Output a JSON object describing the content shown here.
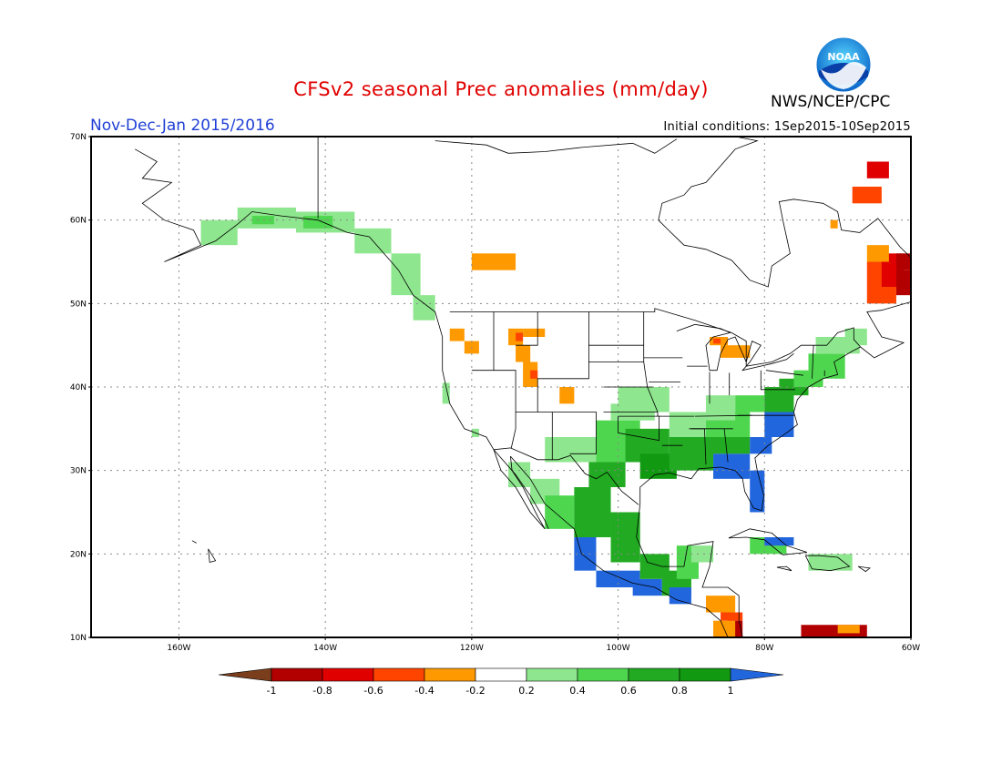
{
  "title": "CFSv2 seasonal Prec anomalies (mm/day)",
  "period": "Nov-Dec-Jan 2015/2016",
  "initial_conditions": "Initial conditions: 1Sep2015-10Sep2015",
  "agency": "NWS/NCEP/CPC",
  "logo_text": "NOAA",
  "map": {
    "lon_range": [
      -172,
      -60
    ],
    "lat_range": [
      10,
      70
    ],
    "lat_ticks": [
      {
        "value": 70,
        "label": "70N"
      },
      {
        "value": 60,
        "label": "60N"
      },
      {
        "value": 50,
        "label": "50N"
      },
      {
        "value": 40,
        "label": "40N"
      },
      {
        "value": 30,
        "label": "30N"
      },
      {
        "value": 20,
        "label": "20N"
      },
      {
        "value": 10,
        "label": "10N"
      }
    ],
    "lon_ticks": [
      {
        "value": -160,
        "label": "160W"
      },
      {
        "value": -140,
        "label": "140W"
      },
      {
        "value": -120,
        "label": "120W"
      },
      {
        "value": -100,
        "label": "100W"
      },
      {
        "value": -80,
        "label": "80W"
      },
      {
        "value": -60,
        "label": "60W"
      }
    ],
    "grid": true
  },
  "colorbar": {
    "labels": [
      "-1",
      "-0.8",
      "-0.6",
      "-0.4",
      "-0.2",
      "0.2",
      "0.4",
      "0.6",
      "0.8",
      "1"
    ],
    "colors": [
      "#7a3e1c",
      "#b20000",
      "#e00000",
      "#ff4400",
      "#ff9900",
      "#ffffff",
      "#8ee68e",
      "#4fd64f",
      "#22aa22",
      "#119911",
      "#2266dd"
    ]
  },
  "anomaly_colors": {
    "lt_-0.8": "#b20000",
    "-0.8_-0.6": "#e00000",
    "-0.6_-0.4": "#ff4400",
    "-0.4_-0.2": "#ff9900",
    "0.2_0.4": "#8ee68e",
    "0.4_0.6": "#4fd64f",
    "0.6_0.8": "#22aa22",
    "0.8_1": "#119911",
    "gt_1": "#2266dd"
  }
}
